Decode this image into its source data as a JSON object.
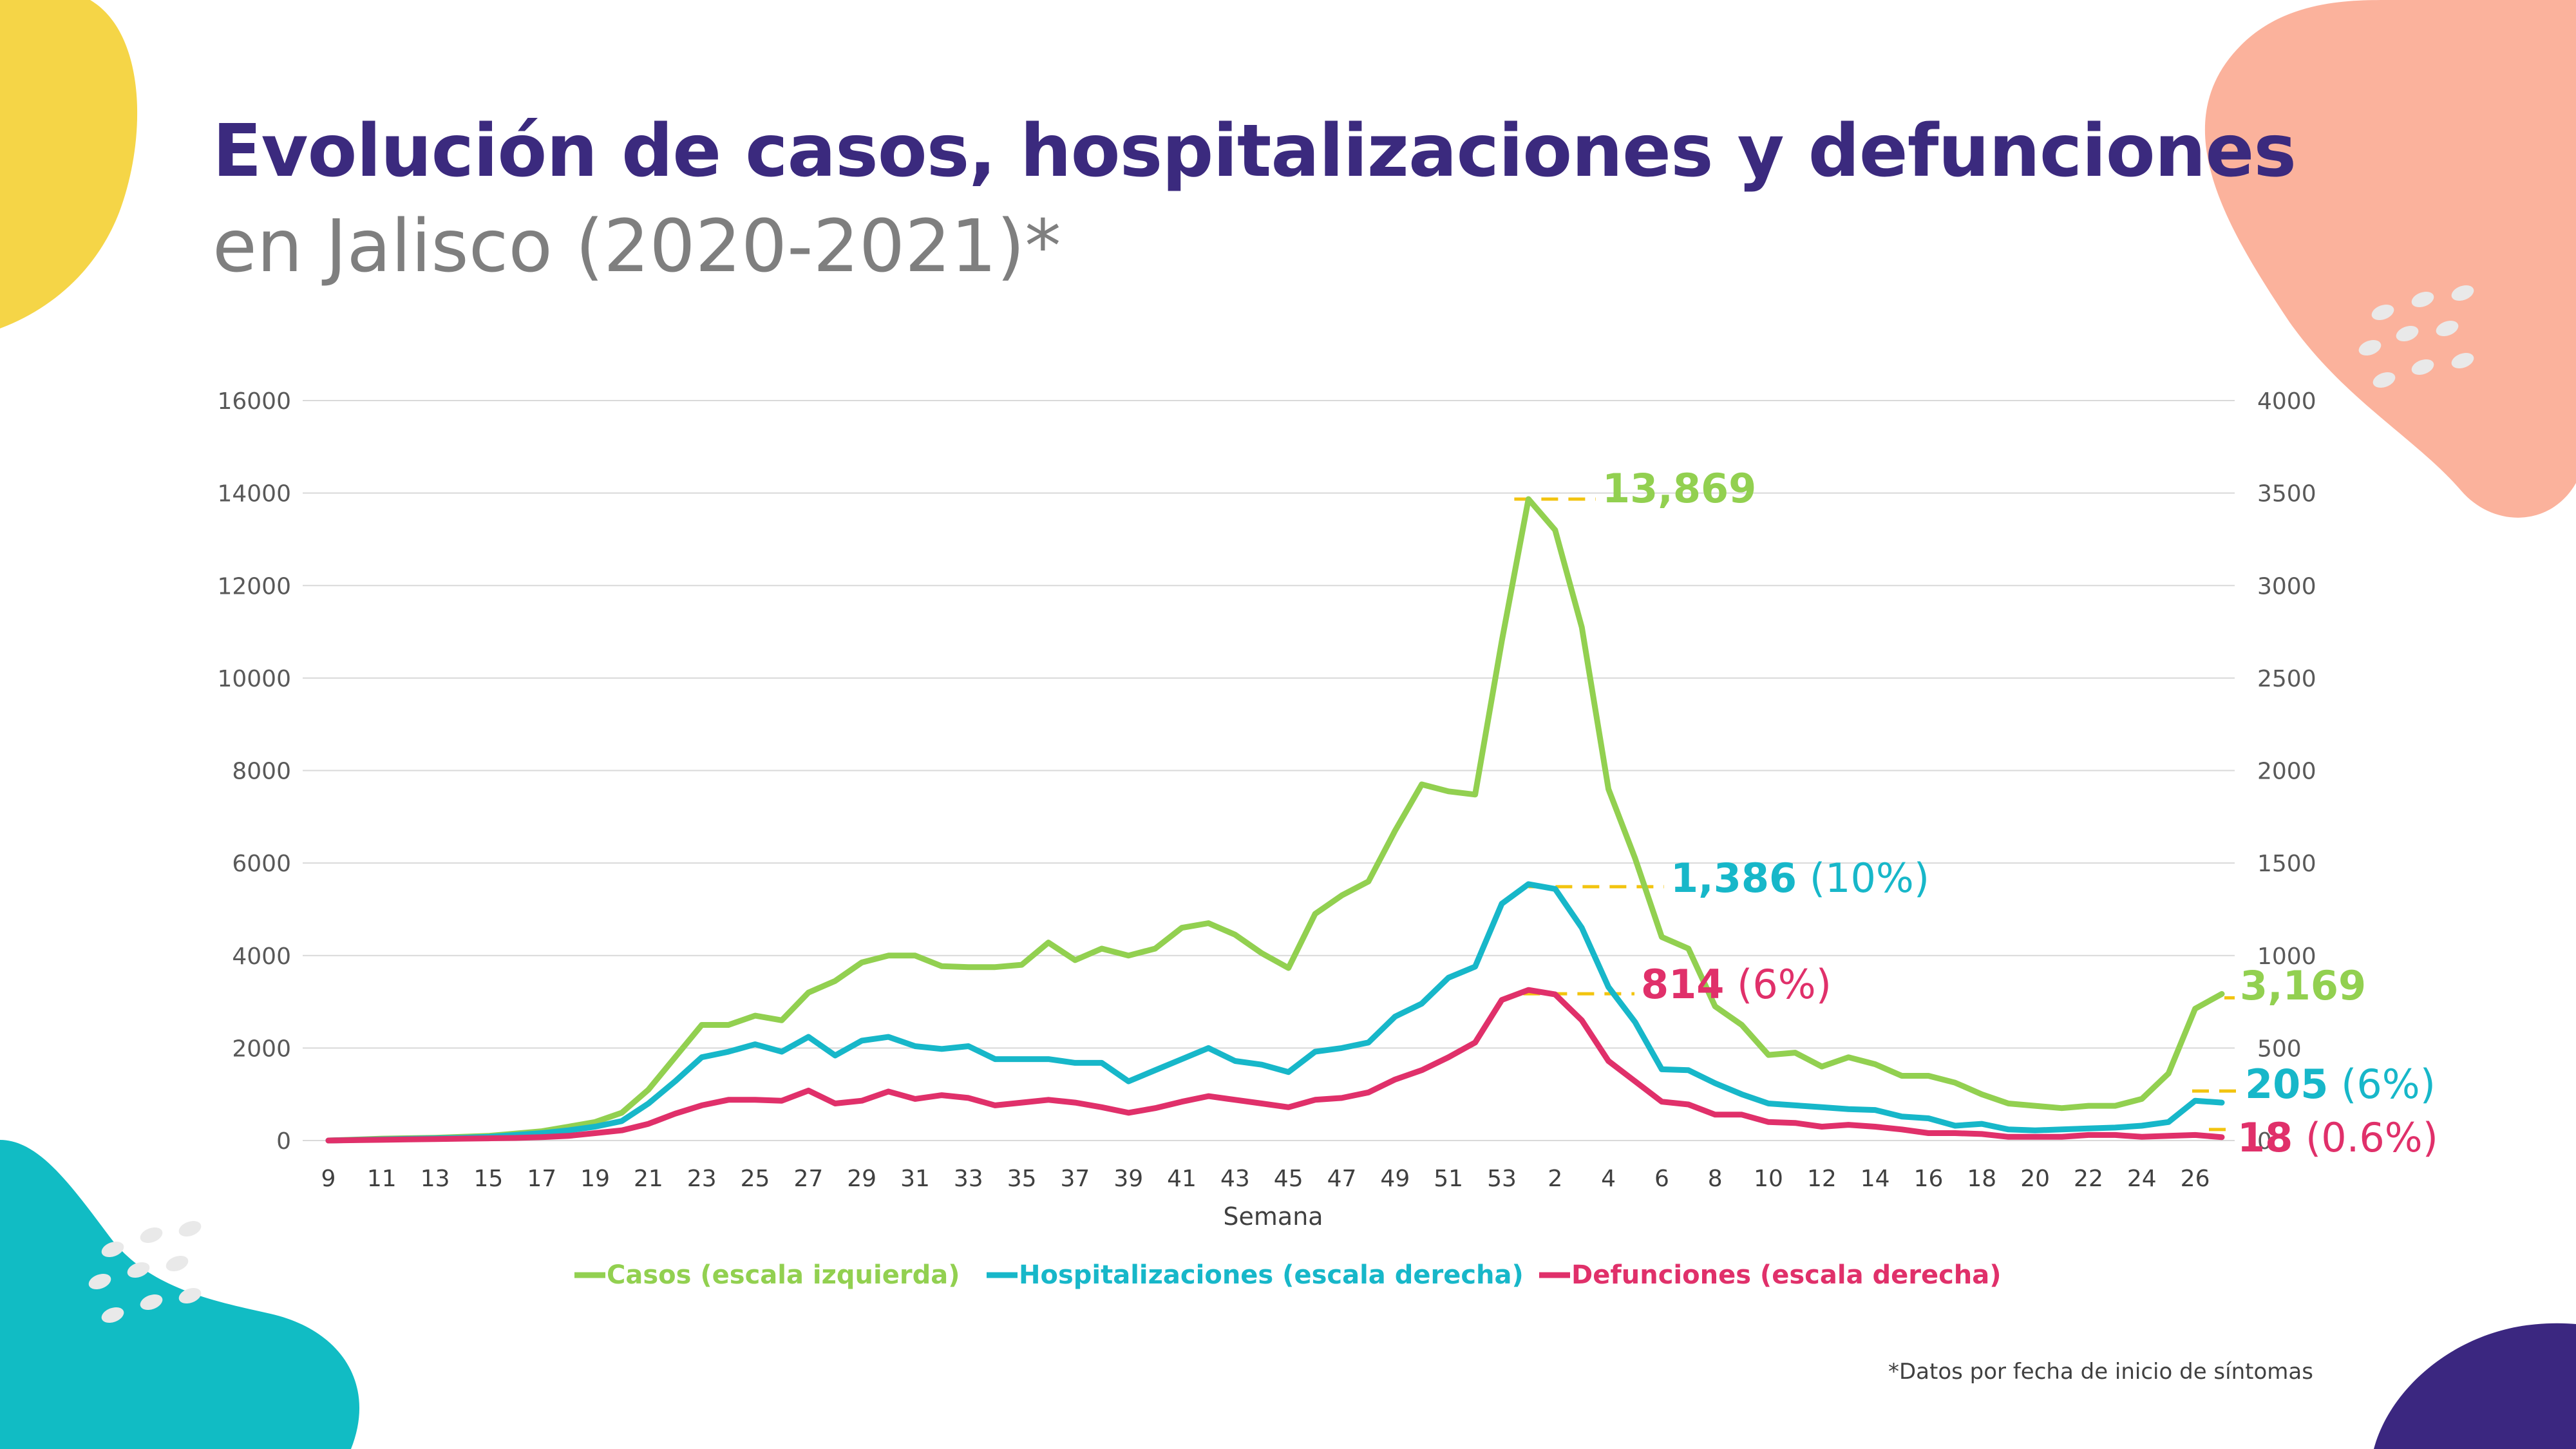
{
  "title": {
    "line1": "Evolución de casos, hospitalizaciones y defunciones",
    "line2": "en Jalisco (2020-2021)*"
  },
  "footnote": "*Datos por fecha de inicio de síntomas",
  "colors": {
    "casos": "#92d050",
    "hospitalizaciones": "#17b7c9",
    "defunciones": "#e0306a",
    "title": "#3b2a7e",
    "subtitle": "#7f7f7f",
    "guide": "#f2c40f",
    "blob_yellow": "#f5d547",
    "blob_peach": "#fbb29c",
    "blob_teal": "#11bcc4",
    "blob_purple": "#3b2780"
  },
  "chart_data": {
    "type": "line",
    "xlabel": "Semana",
    "grid": true,
    "legend_position": "bottom",
    "y_left": {
      "ylim": [
        0,
        16000
      ],
      "ticks": [
        "0",
        "2000",
        "4000",
        "6000",
        "8000",
        "10000",
        "12000",
        "14000",
        "16000"
      ]
    },
    "y_right": {
      "ylim": [
        0,
        4000
      ],
      "ticks": [
        "0",
        "500",
        "1000",
        "1500",
        "2000",
        "2500",
        "3000",
        "3500",
        "4000"
      ]
    },
    "x_tick_labels": [
      "9",
      "11",
      "13",
      "15",
      "17",
      "19",
      "21",
      "23",
      "25",
      "27",
      "29",
      "31",
      "33",
      "35",
      "37",
      "39",
      "41",
      "43",
      "45",
      "47",
      "49",
      "51",
      "53",
      "2",
      "4",
      "6",
      "8",
      "10",
      "12",
      "14",
      "16",
      "18",
      "20",
      "22",
      "24",
      "26"
    ],
    "x": [
      "9",
      "10",
      "11",
      "12",
      "13",
      "14",
      "15",
      "16",
      "17",
      "18",
      "19",
      "20",
      "21",
      "22",
      "23",
      "24",
      "25",
      "26",
      "27",
      "28",
      "29",
      "30",
      "31",
      "32",
      "33",
      "34",
      "35",
      "36",
      "37",
      "38",
      "39",
      "40",
      "41",
      "42",
      "43",
      "44",
      "45",
      "46",
      "47",
      "48",
      "49",
      "50",
      "51",
      "52",
      "53",
      "1",
      "2",
      "3",
      "4",
      "5",
      "6",
      "7",
      "8",
      "9",
      "10",
      "11",
      "12",
      "13",
      "14",
      "15",
      "16",
      "17",
      "18",
      "19",
      "20",
      "21",
      "22",
      "23",
      "24",
      "25",
      "26",
      "27"
    ],
    "series": [
      {
        "name": "Casos (escala izquierda)",
        "axis": "left",
        "values": [
          0,
          20,
          40,
          50,
          60,
          80,
          100,
          150,
          200,
          300,
          400,
          600,
          1100,
          1800,
          2500,
          2500,
          2700,
          2600,
          3200,
          3450,
          3850,
          4000,
          4000,
          3770,
          3750,
          3750,
          3800,
          4280,
          3900,
          4150,
          4000,
          4150,
          4600,
          4700,
          4450,
          4050,
          3730,
          4900,
          5300,
          5600,
          6700,
          7700,
          7550,
          7480,
          10800,
          13869,
          13200,
          11100,
          7600,
          6100,
          4400,
          4150,
          2900,
          2500,
          1850,
          1900,
          1600,
          1800,
          1650,
          1400,
          1400,
          1250,
          1000,
          800,
          750,
          700,
          750,
          750,
          900,
          1450,
          2850,
          3169
        ],
        "end_label": "3,169",
        "peak_label": "13,869"
      },
      {
        "name": "Hospitalizaciones (escala derecha)",
        "axis": "right",
        "values": [
          0,
          3,
          6,
          9,
          12,
          15,
          20,
          30,
          40,
          55,
          75,
          105,
          200,
          320,
          450,
          480,
          520,
          480,
          560,
          460,
          540,
          560,
          510,
          495,
          510,
          440,
          440,
          440,
          420,
          420,
          320,
          380,
          440,
          500,
          430,
          410,
          370,
          480,
          500,
          530,
          670,
          740,
          880,
          940,
          1280,
          1386,
          1360,
          1150,
          830,
          640,
          385,
          380,
          310,
          250,
          200,
          190,
          180,
          170,
          165,
          130,
          120,
          80,
          90,
          60,
          55,
          60,
          65,
          70,
          80,
          100,
          215,
          205
        ],
        "end_label": "205",
        "end_pct": "(6%)",
        "peak_label": "1,386",
        "peak_pct": "(10%)"
      },
      {
        "name": "Defunciones (escala derecha)",
        "axis": "right",
        "values": [
          0,
          2,
          4,
          6,
          8,
          10,
          12,
          14,
          18,
          25,
          40,
          55,
          90,
          145,
          190,
          220,
          220,
          215,
          270,
          200,
          215,
          265,
          225,
          245,
          230,
          190,
          205,
          220,
          205,
          180,
          150,
          175,
          210,
          240,
          220,
          200,
          180,
          220,
          230,
          260,
          330,
          380,
          450,
          530,
          760,
          814,
          790,
          650,
          430,
          320,
          210,
          195,
          140,
          140,
          100,
          95,
          75,
          85,
          75,
          60,
          40,
          40,
          35,
          20,
          20,
          20,
          30,
          30,
          20,
          25,
          30,
          18
        ],
        "end_label": "18",
        "end_pct": "(0.6%)",
        "peak_label": "814",
        "peak_pct": "(6%)"
      }
    ]
  }
}
